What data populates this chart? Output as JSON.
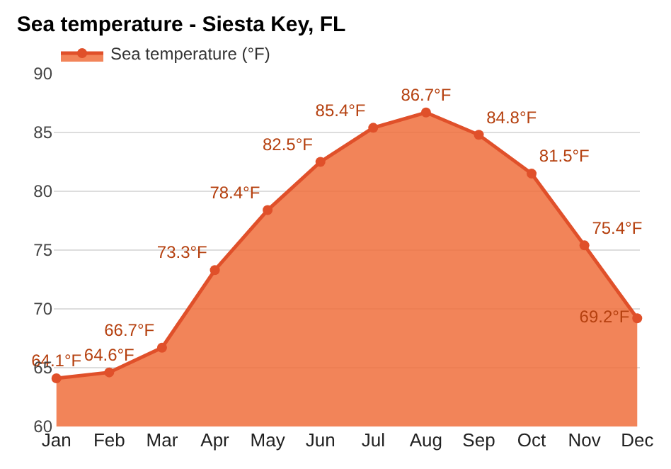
{
  "chart_data": {
    "type": "area",
    "title": "Sea temperature - Siesta Key, FL",
    "categories": [
      "Jan",
      "Feb",
      "Mar",
      "Apr",
      "May",
      "Jun",
      "Jul",
      "Aug",
      "Sep",
      "Oct",
      "Nov",
      "Dec"
    ],
    "series": [
      {
        "name": "Sea temperature (°F)",
        "color": "#e0502a",
        "values": [
          64.1,
          64.6,
          66.7,
          73.3,
          78.4,
          82.5,
          85.4,
          86.7,
          84.8,
          81.5,
          75.4,
          69.2
        ],
        "value_labels": [
          "64.1°F",
          "64.6°F",
          "66.7°F",
          "73.3°F",
          "78.4°F",
          "82.5°F",
          "85.4°F",
          "86.7°F",
          "84.8°F",
          "81.5°F",
          "75.4°F",
          "69.2°F"
        ]
      }
    ],
    "ylim": [
      60,
      90
    ],
    "yticks": [
      60,
      65,
      70,
      75,
      80,
      85,
      90
    ],
    "grid": "y",
    "legend": "top left",
    "marker": "circle",
    "line_style": "solid"
  }
}
